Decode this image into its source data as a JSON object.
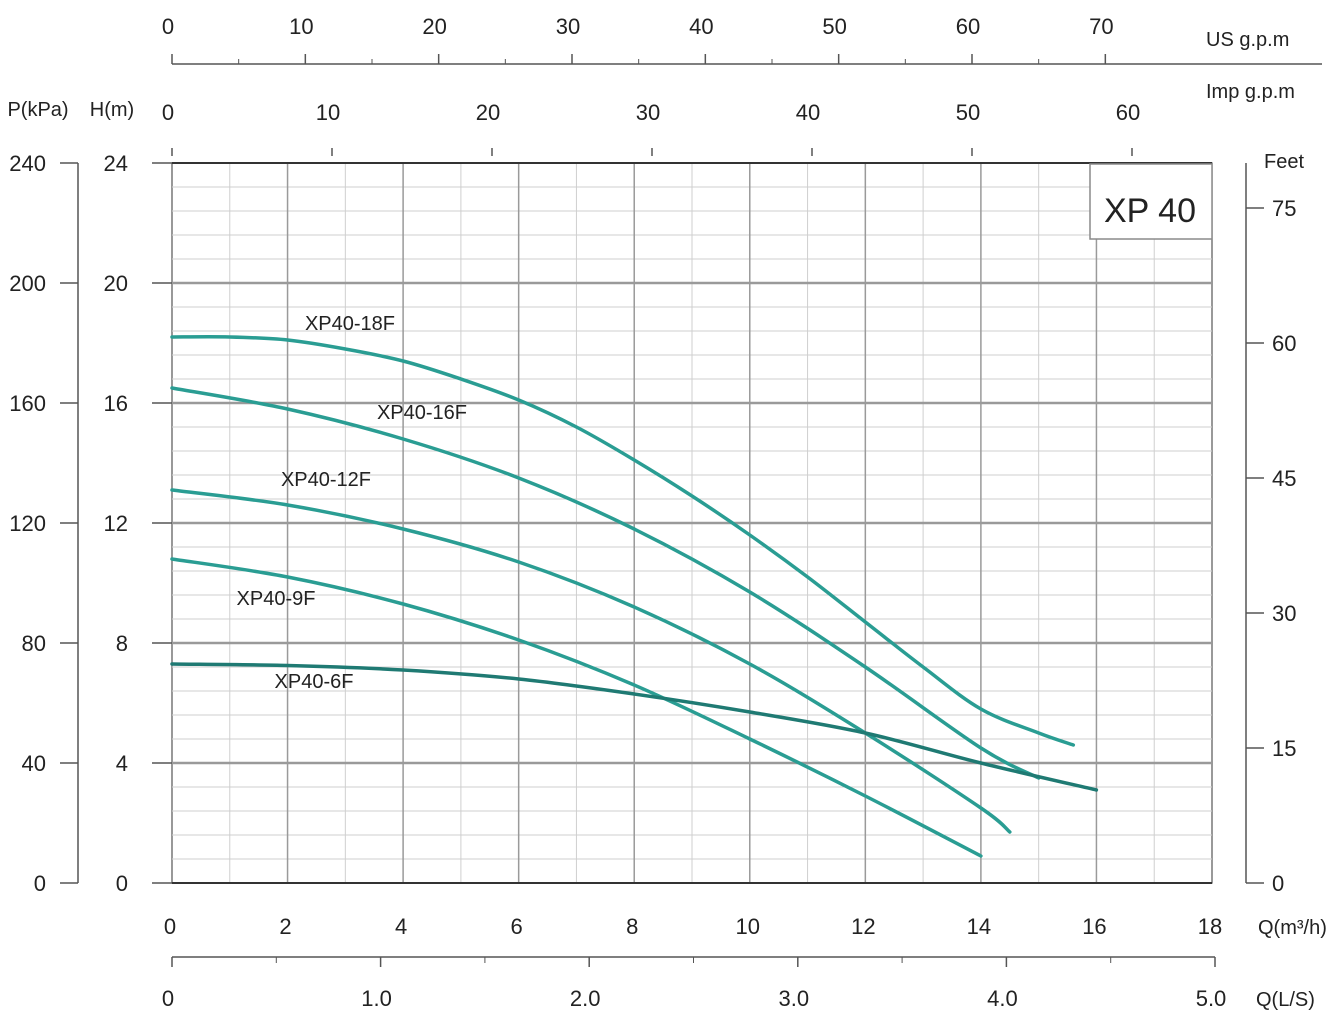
{
  "colors": {
    "curve": "#2a9d93",
    "curve_low": "#1f7a73",
    "grid_major": "#9a9a9a",
    "grid_minor": "#cfcfcf",
    "axis": "#555555",
    "text": "#222222"
  },
  "chart_data": {
    "type": "line",
    "title": "XP 40",
    "xlim": [
      0,
      18
    ],
    "ylim": [
      0,
      24
    ],
    "x_axis": {
      "label": "Q(m³/h)",
      "ticks": [
        0,
        2,
        4,
        6,
        8,
        10,
        12,
        14,
        16,
        18
      ],
      "tick_labels": [
        "0",
        "2",
        "4",
        "6",
        "8",
        "10",
        "12",
        "14",
        "16",
        "18"
      ]
    },
    "y_axis_left": {
      "label": "H(m)",
      "ticks": [
        0,
        4,
        8,
        12,
        16,
        20,
        24
      ],
      "tick_labels": [
        "0",
        "4",
        "8",
        "12",
        "16",
        "20",
        "24"
      ]
    },
    "pressure_axis": {
      "label": "P(kPa)",
      "ticks": [
        0,
        40,
        80,
        120,
        160,
        200,
        240
      ],
      "tick_labels": [
        "0",
        "40",
        "80",
        "120",
        "160",
        "200",
        "240"
      ]
    },
    "feet_axis": {
      "label": "Feet",
      "ticks": [
        0,
        15,
        30,
        45,
        60,
        75
      ],
      "tick_labels": [
        "0",
        "15",
        "30",
        "45",
        "60",
        "75"
      ]
    },
    "us_gpm_axis": {
      "label": "US  g.p.m",
      "ticks": [
        0,
        10,
        20,
        30,
        40,
        50,
        60,
        70
      ],
      "tick_labels": [
        "0",
        "10",
        "20",
        "30",
        "40",
        "50",
        "60",
        "70"
      ]
    },
    "imp_gpm_axis": {
      "label": "Imp  g.p.m",
      "ticks": [
        0,
        10,
        20,
        30,
        40,
        50,
        60
      ],
      "tick_labels": [
        "0",
        "10",
        "20",
        "30",
        "40",
        "50",
        "60"
      ]
    },
    "ls_axis": {
      "label": "Q(L/S)",
      "ticks": [
        0,
        1,
        2,
        3,
        4,
        5
      ],
      "tick_labels": [
        "0",
        "1.0",
        "2.0",
        "3.0",
        "4.0",
        "5.0"
      ]
    },
    "series": [
      {
        "name": "XP40-18F",
        "x": [
          0,
          1,
          2,
          3,
          4,
          5,
          6,
          7,
          8,
          9,
          10,
          11,
          12,
          13,
          14,
          15,
          15.6
        ],
        "y": [
          18.2,
          18.2,
          18.1,
          17.8,
          17.4,
          16.8,
          16.1,
          15.2,
          14.1,
          12.9,
          11.6,
          10.2,
          8.7,
          7.2,
          5.8,
          5.0,
          4.6
        ]
      },
      {
        "name": "XP40-16F",
        "x": [
          0,
          2,
          4,
          6,
          8,
          10,
          12,
          14,
          15
        ],
        "y": [
          16.5,
          15.8,
          14.8,
          13.5,
          11.8,
          9.7,
          7.2,
          4.5,
          3.5
        ]
      },
      {
        "name": "XP40-12F",
        "x": [
          0,
          2,
          4,
          6,
          8,
          10,
          12,
          14,
          14.5
        ],
        "y": [
          13.1,
          12.6,
          11.8,
          10.7,
          9.2,
          7.3,
          5.0,
          2.5,
          1.7
        ]
      },
      {
        "name": "XP40-9F",
        "x": [
          0,
          2,
          4,
          6,
          8,
          10,
          12,
          14
        ],
        "y": [
          10.8,
          10.2,
          9.3,
          8.1,
          6.6,
          4.8,
          2.9,
          0.9
        ]
      },
      {
        "name": "XP40-6F",
        "x": [
          0,
          2,
          4,
          6,
          8,
          10,
          12,
          14,
          16
        ],
        "y": [
          7.3,
          7.25,
          7.1,
          6.8,
          6.3,
          5.7,
          5.0,
          4.0,
          3.1
        ]
      }
    ],
    "curve_labels": [
      "XP40-18F",
      "XP40-16F",
      "XP40-12F",
      "XP40-9F",
      "XP40-6F"
    ],
    "grid": true,
    "legend": "none"
  }
}
